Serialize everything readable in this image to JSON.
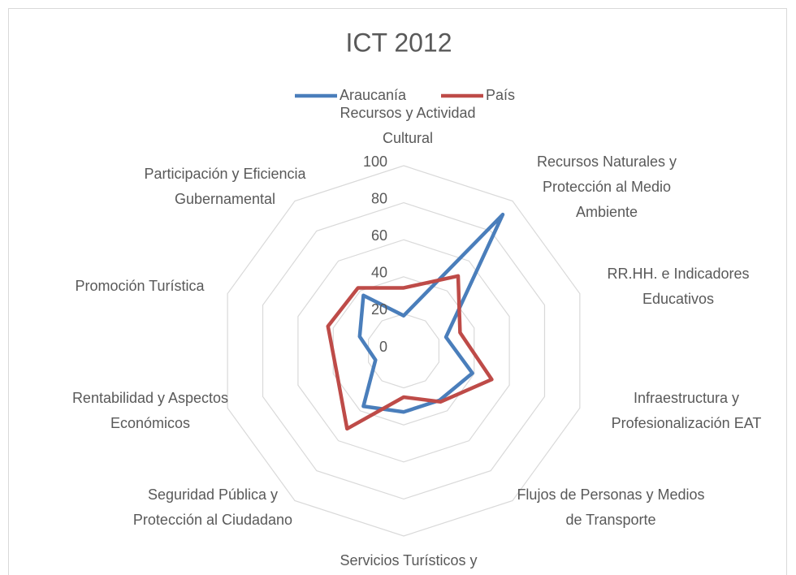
{
  "chart_data": {
    "type": "radar",
    "title": "ICT 2012",
    "categories": [
      "Recursos y Actividad Cultural",
      "Recursos Naturales y Protección al Medio Ambiente",
      "RR.HH. e Indicadores Educativos",
      "Infraestructura y Profesionalización EAT",
      "Flujos de Personas y Medios de Transporte",
      "Servicios Turísticos y",
      "Seguridad Pública y Protección al Ciudadano",
      "Rentabilidad y Aspectos Económicos",
      "Promoción Turística",
      "Participación y Eficiencia Gubernamental"
    ],
    "series": [
      {
        "name": "Araucanía",
        "color": "#4a7ebb",
        "values": [
          19,
          91,
          24,
          39,
          33,
          33,
          37,
          16,
          25,
          37
        ]
      },
      {
        "name": "País",
        "color": "#be4b48",
        "values": [
          34,
          50,
          32,
          50,
          34,
          25,
          52,
          38,
          43,
          42
        ]
      }
    ],
    "ylim": [
      0,
      100
    ],
    "yticks": [
      0,
      20,
      40,
      60,
      80,
      100
    ],
    "grid": true,
    "legend": "top"
  }
}
